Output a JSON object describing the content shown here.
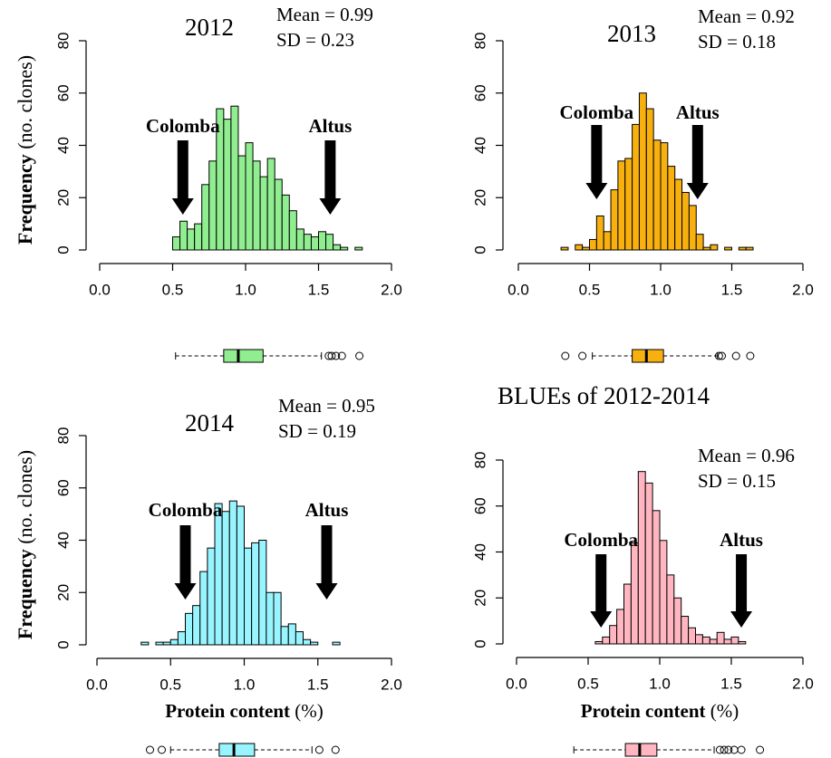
{
  "chart_data": [
    {
      "type": "histogram",
      "title": "2012",
      "stats": [
        "Mean = 0.99",
        "SD = 0.23"
      ],
      "color": "#90ee90",
      "bins": [
        0.5,
        0.55,
        0.6,
        0.65,
        0.7,
        0.75,
        0.8,
        0.85,
        0.9,
        0.95,
        1.0,
        1.05,
        1.1,
        1.15,
        1.2,
        1.25,
        1.3,
        1.35,
        1.4,
        1.45,
        1.5,
        1.55,
        1.6,
        1.65,
        1.7,
        1.75,
        1.8
      ],
      "values": [
        5,
        11,
        8,
        10,
        25,
        34,
        54,
        50,
        55,
        36,
        41,
        34,
        28,
        35,
        27,
        21,
        15,
        8,
        6,
        5,
        7,
        6,
        2,
        1,
        0,
        1
      ],
      "xlim": [
        0,
        2
      ],
      "xticks": [
        {
          "value": 0,
          "label": "0.0"
        },
        0.5,
        {
          "value": 1,
          "label": "1.0"
        },
        1.5,
        {
          "value": 2,
          "label": "2.0"
        }
      ],
      "ylim": [
        0,
        80
      ],
      "yticks": [
        0,
        20,
        40,
        60,
        80
      ],
      "y_label": [
        "Frequency",
        "(no. clones)"
      ],
      "annotations": [
        {
          "label": "Colomba",
          "x": 0.57
        },
        {
          "label": "Altus",
          "x": 1.58
        }
      ],
      "boxplot": {
        "whisker_low": 0.52,
        "q1": 0.85,
        "median": 0.95,
        "q3": 1.12,
        "whisker_high": 1.52,
        "outliers": [
          1.57,
          1.59,
          1.62,
          1.66,
          1.78
        ]
      }
    },
    {
      "type": "histogram",
      "title": "2013",
      "stats": [
        "Mean = 0.92",
        "SD = 0.18"
      ],
      "color": "#f8b00f",
      "bins": [
        0.3,
        0.35,
        0.4,
        0.45,
        0.5,
        0.55,
        0.6,
        0.65,
        0.7,
        0.75,
        0.8,
        0.85,
        0.9,
        0.95,
        1.0,
        1.05,
        1.1,
        1.15,
        1.2,
        1.25,
        1.3,
        1.35,
        1.4,
        1.45,
        1.5,
        1.55,
        1.6,
        1.65
      ],
      "values": [
        1,
        0,
        2,
        1,
        4,
        13,
        7,
        23,
        34,
        35,
        48,
        60,
        54,
        42,
        41,
        32,
        27,
        22,
        17,
        6,
        1,
        2,
        0,
        1,
        0,
        1,
        1
      ],
      "xlim": [
        0,
        2
      ],
      "xticks": [
        {
          "value": 0,
          "label": "0.0"
        },
        0.5,
        {
          "value": 1,
          "label": "1.0"
        },
        1.5,
        {
          "value": 2,
          "label": "2.0"
        }
      ],
      "ylim": [
        0,
        80
      ],
      "yticks": [
        0,
        20,
        40,
        60,
        80
      ],
      "annotations": [
        {
          "label": "Colomba",
          "x": 0.55
        },
        {
          "label": "Altus",
          "x": 1.26
        }
      ],
      "boxplot": {
        "whisker_low": 0.52,
        "q1": 0.8,
        "median": 0.9,
        "q3": 1.02,
        "whisker_high": 1.4,
        "outliers": [
          0.33,
          0.45,
          1.41,
          1.43,
          1.53,
          1.63
        ]
      }
    },
    {
      "type": "histogram",
      "title": "2014",
      "stats": [
        "Mean = 0.95",
        "SD = 0.19"
      ],
      "color": "#98f5ff",
      "bins": [
        0.3,
        0.35,
        0.4,
        0.45,
        0.5,
        0.55,
        0.6,
        0.65,
        0.7,
        0.75,
        0.8,
        0.85,
        0.9,
        0.95,
        1.0,
        1.05,
        1.1,
        1.15,
        1.2,
        1.25,
        1.3,
        1.35,
        1.4,
        1.45,
        1.5,
        1.55,
        1.6,
        1.65
      ],
      "values": [
        1,
        0,
        1,
        1,
        2,
        5,
        12,
        15,
        28,
        37,
        54,
        51,
        55,
        53,
        37,
        39,
        40,
        20,
        20,
        7,
        8,
        5,
        2,
        1,
        0,
        0,
        1
      ],
      "xlim": [
        0,
        2
      ],
      "xticks": [
        {
          "value": 0,
          "label": "0.0"
        },
        0.5,
        {
          "value": 1,
          "label": "1.0"
        },
        1.5,
        {
          "value": 2,
          "label": "2.0"
        }
      ],
      "ylim": [
        0,
        80
      ],
      "yticks": [
        0,
        20,
        40,
        60,
        80
      ],
      "y_label": [
        "Frequency",
        "(no. clones)"
      ],
      "x_label": [
        "Protein content",
        "(%)"
      ],
      "annotations": [
        {
          "label": "Colomba",
          "x": 0.6
        },
        {
          "label": "Altus",
          "x": 1.56
        }
      ],
      "boxplot": {
        "whisker_low": 0.5,
        "q1": 0.83,
        "median": 0.93,
        "q3": 1.07,
        "whisker_high": 1.46,
        "outliers": [
          0.36,
          0.44,
          1.51,
          1.62
        ]
      }
    },
    {
      "type": "histogram",
      "title": "BLUEs of 2012-2014",
      "stats": [
        "Mean = 0.96",
        "SD = 0.15"
      ],
      "color": "#ffb6c1",
      "bins": [
        0.55,
        0.6,
        0.65,
        0.7,
        0.75,
        0.8,
        0.85,
        0.9,
        0.95,
        1.0,
        1.05,
        1.1,
        1.15,
        1.2,
        1.25,
        1.3,
        1.35,
        1.4,
        1.45,
        1.5,
        1.55,
        1.6
      ],
      "values": [
        1,
        3,
        8,
        15,
        26,
        44,
        75,
        70,
        58,
        45,
        30,
        20,
        12,
        7,
        4,
        3,
        2,
        5,
        2,
        3,
        1
      ],
      "xlim": [
        0,
        2
      ],
      "xticks": [
        {
          "value": 0,
          "label": "0.0"
        },
        0.5,
        {
          "value": 1,
          "label": "1.0"
        },
        1.5,
        {
          "value": 2,
          "label": "2.0"
        }
      ],
      "ylim": [
        0,
        80
      ],
      "yticks": [
        0,
        20,
        40,
        60,
        80
      ],
      "x_label": [
        "Protein content",
        "(%)"
      ],
      "annotations": [
        {
          "label": "Colomba",
          "x": 0.59
        },
        {
          "label": "Altus",
          "x": 1.57
        }
      ],
      "boxplot": {
        "whisker_low": 0.4,
        "q1": 0.76,
        "median": 0.86,
        "q3": 0.98,
        "whisker_high": 1.38,
        "outliers": [
          1.42,
          1.45,
          1.48,
          1.52,
          1.57,
          1.7
        ]
      }
    }
  ]
}
